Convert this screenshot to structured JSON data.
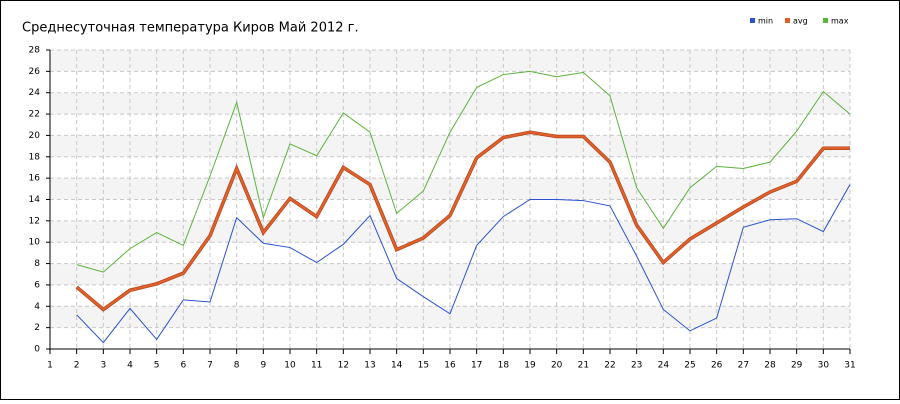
{
  "chart_data": {
    "type": "line",
    "title": "Среднесуточная температура Киров  Май 2012 г.",
    "x": [
      1,
      2,
      3,
      4,
      5,
      6,
      7,
      8,
      9,
      10,
      11,
      12,
      13,
      14,
      15,
      16,
      17,
      18,
      19,
      20,
      21,
      22,
      23,
      24,
      25,
      26,
      27,
      28,
      29,
      30,
      31
    ],
    "series": [
      {
        "name": "min",
        "color": "#2a52d0",
        "values": [
          null,
          3.2,
          0.6,
          3.8,
          0.9,
          4.6,
          4.4,
          12.3,
          9.9,
          9.5,
          8.1,
          9.8,
          12.5,
          6.6,
          4.9,
          3.3,
          9.7,
          12.4,
          14.0,
          14.0,
          13.9,
          13.4,
          8.7,
          3.7,
          1.7,
          2.9,
          11.4,
          12.1,
          12.2,
          11.0,
          15.4
        ]
      },
      {
        "name": "avg",
        "color": "#e0602a",
        "values": [
          null,
          5.8,
          3.7,
          5.5,
          6.1,
          7.1,
          10.6,
          16.9,
          10.9,
          14.1,
          12.4,
          17.0,
          15.4,
          9.3,
          10.4,
          12.5,
          17.9,
          19.8,
          20.3,
          19.9,
          19.9,
          17.5,
          11.6,
          8.1,
          10.3,
          11.8,
          13.3,
          14.7,
          15.7,
          18.8,
          18.8
        ]
      },
      {
        "name": "max",
        "color": "#5ab33c",
        "values": [
          null,
          7.9,
          7.2,
          9.4,
          10.9,
          9.7,
          16.2,
          23.1,
          12.3,
          19.2,
          18.1,
          22.1,
          20.3,
          12.7,
          14.8,
          20.3,
          24.5,
          25.7,
          26.0,
          25.5,
          25.9,
          23.7,
          15.1,
          11.3,
          15.1,
          17.1,
          16.9,
          17.5,
          20.4,
          24.1,
          22.0
        ]
      }
    ],
    "xlim": [
      1,
      31
    ],
    "xticks": [
      1,
      2,
      3,
      4,
      5,
      6,
      7,
      8,
      9,
      10,
      11,
      12,
      13,
      14,
      15,
      16,
      17,
      18,
      19,
      20,
      21,
      22,
      23,
      24,
      25,
      26,
      27,
      28,
      29,
      30,
      31
    ],
    "ylim": [
      0,
      28
    ],
    "yticks": [
      0,
      2,
      4,
      6,
      8,
      10,
      12,
      14,
      16,
      18,
      20,
      22,
      24,
      26,
      28
    ],
    "grid": true,
    "legend": "top-right"
  }
}
